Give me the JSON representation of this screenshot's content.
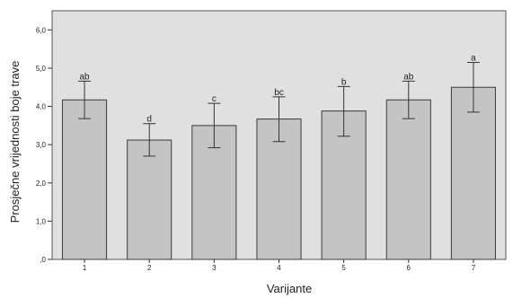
{
  "chart_data": {
    "type": "bar",
    "xlabel": "Varijante",
    "ylabel": "Prosječne vrijednosti boje trave",
    "categories": [
      "1",
      "2",
      "3",
      "4",
      "5",
      "6",
      "7"
    ],
    "values": [
      4.17,
      3.12,
      3.5,
      3.67,
      3.88,
      4.17,
      4.5
    ],
    "error_low": [
      3.68,
      2.7,
      2.92,
      3.08,
      3.22,
      3.68,
      3.85
    ],
    "error_high": [
      4.66,
      3.55,
      4.08,
      4.25,
      4.52,
      4.66,
      5.15
    ],
    "significance": [
      "ab",
      "d",
      "c",
      "bc",
      "b",
      "ab",
      "a"
    ],
    "yticks": [
      ",0",
      "1,0",
      "2,0",
      "3,0",
      "4,0",
      "5,0",
      "6,0"
    ],
    "ylim": [
      0,
      6.5
    ],
    "grid": false,
    "colors": {
      "plot_bg": "#e0e0e0",
      "bar_fill": "#c4c4c4",
      "bar_stroke": "#3a3a3a"
    }
  }
}
